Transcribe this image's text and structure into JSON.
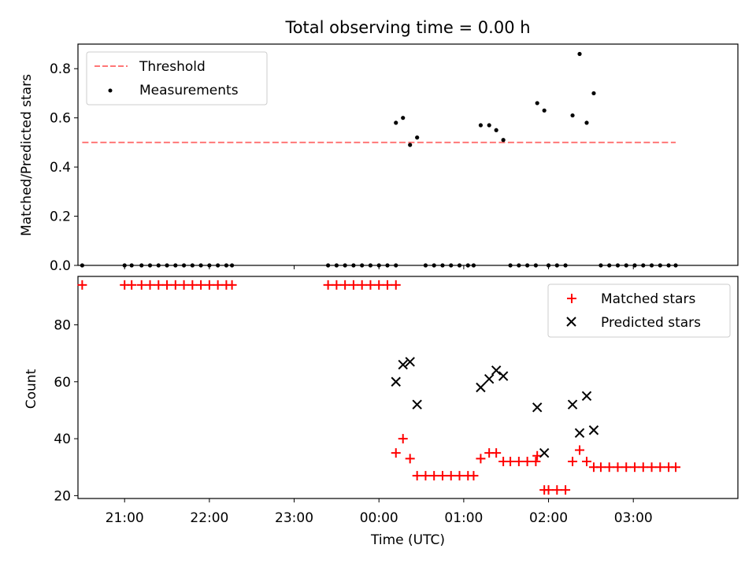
{
  "chart_data": [
    {
      "type": "scatter",
      "title": "Total observing time = 0.00 h",
      "xlabel": "",
      "ylabel": "Matched/Predicted stars",
      "xlim": [
        "20:27",
        "04:14"
      ],
      "ylim": [
        0.0,
        0.9
      ],
      "yticks": [
        "0.0",
        "0.2",
        "0.4",
        "0.6",
        "0.8"
      ],
      "legend": "upper left",
      "threshold": {
        "name": "Threshold",
        "value": 0.5,
        "x_start": "20:30",
        "x_end": "03:30",
        "color": "#ff7777",
        "style": "dashed"
      },
      "series": [
        {
          "name": "Measurements",
          "color": "#000000",
          "marker": "dot",
          "points": [
            [
              "20:30",
              0
            ],
            [
              "21:00",
              0
            ],
            [
              "21:05",
              0
            ],
            [
              "21:12",
              0
            ],
            [
              "21:18",
              0
            ],
            [
              "21:24",
              0
            ],
            [
              "21:30",
              0
            ],
            [
              "21:36",
              0
            ],
            [
              "21:42",
              0
            ],
            [
              "21:48",
              0
            ],
            [
              "21:54",
              0
            ],
            [
              "22:00",
              0
            ],
            [
              "22:06",
              0
            ],
            [
              "22:12",
              0
            ],
            [
              "22:16",
              0
            ],
            [
              "23:24",
              0
            ],
            [
              "23:30",
              0
            ],
            [
              "23:36",
              0
            ],
            [
              "23:42",
              0
            ],
            [
              "23:48",
              0
            ],
            [
              "23:54",
              0
            ],
            [
              "00:00",
              0
            ],
            [
              "00:06",
              0
            ],
            [
              "00:12",
              0
            ],
            [
              "00:12",
              0.58
            ],
            [
              "00:17",
              0.6
            ],
            [
              "00:22",
              0.49
            ],
            [
              "00:27",
              0.52
            ],
            [
              "00:33",
              0
            ],
            [
              "00:39",
              0
            ],
            [
              "00:45",
              0
            ],
            [
              "00:51",
              0
            ],
            [
              "00:57",
              0
            ],
            [
              "01:03",
              0
            ],
            [
              "01:07",
              0
            ],
            [
              "01:12",
              0.57
            ],
            [
              "01:18",
              0.57
            ],
            [
              "01:23",
              0.55
            ],
            [
              "01:28",
              0.51
            ],
            [
              "01:33",
              0
            ],
            [
              "01:39",
              0
            ],
            [
              "01:45",
              0
            ],
            [
              "01:51",
              0
            ],
            [
              "01:52",
              0.66
            ],
            [
              "01:57",
              0.63
            ],
            [
              "02:00",
              0
            ],
            [
              "02:06",
              0
            ],
            [
              "02:12",
              0
            ],
            [
              "02:17",
              0.61
            ],
            [
              "02:22",
              0.86
            ],
            [
              "02:27",
              0.58
            ],
            [
              "02:32",
              0.7
            ],
            [
              "02:37",
              0
            ],
            [
              "02:43",
              0
            ],
            [
              "02:49",
              0
            ],
            [
              "02:55",
              0
            ],
            [
              "03:01",
              0
            ],
            [
              "03:07",
              0
            ],
            [
              "03:13",
              0
            ],
            [
              "03:19",
              0
            ],
            [
              "03:25",
              0
            ],
            [
              "03:30",
              0
            ]
          ]
        }
      ]
    },
    {
      "type": "scatter",
      "title": "",
      "xlabel": "Time (UTC)",
      "ylabel": "Count",
      "xlim": [
        "20:27",
        "04:14"
      ],
      "ylim": [
        19,
        97
      ],
      "yticks": [
        "20",
        "40",
        "60",
        "80"
      ],
      "xticks": [
        "21:00",
        "22:00",
        "23:00",
        "00:00",
        "01:00",
        "02:00",
        "03:00"
      ],
      "legend": "upper right",
      "series": [
        {
          "name": "Matched stars",
          "color": "#ff0000",
          "marker": "plus",
          "points": [
            [
              "20:30",
              94
            ],
            [
              "21:00",
              94
            ],
            [
              "21:05",
              94
            ],
            [
              "21:12",
              94
            ],
            [
              "21:18",
              94
            ],
            [
              "21:24",
              94
            ],
            [
              "21:30",
              94
            ],
            [
              "21:36",
              94
            ],
            [
              "21:42",
              94
            ],
            [
              "21:48",
              94
            ],
            [
              "21:54",
              94
            ],
            [
              "22:00",
              94
            ],
            [
              "22:06",
              94
            ],
            [
              "22:12",
              94
            ],
            [
              "22:16",
              94
            ],
            [
              "23:24",
              94
            ],
            [
              "23:30",
              94
            ],
            [
              "23:36",
              94
            ],
            [
              "23:42",
              94
            ],
            [
              "23:48",
              94
            ],
            [
              "23:54",
              94
            ],
            [
              "00:00",
              94
            ],
            [
              "00:06",
              94
            ],
            [
              "00:12",
              94
            ],
            [
              "00:12",
              35
            ],
            [
              "00:17",
              40
            ],
            [
              "00:22",
              33
            ],
            [
              "00:27",
              27
            ],
            [
              "00:33",
              27
            ],
            [
              "00:39",
              27
            ],
            [
              "00:45",
              27
            ],
            [
              "00:51",
              27
            ],
            [
              "00:57",
              27
            ],
            [
              "01:03",
              27
            ],
            [
              "01:07",
              27
            ],
            [
              "01:12",
              33
            ],
            [
              "01:18",
              35
            ],
            [
              "01:23",
              35
            ],
            [
              "01:28",
              32
            ],
            [
              "01:33",
              32
            ],
            [
              "01:39",
              32
            ],
            [
              "01:45",
              32
            ],
            [
              "01:51",
              32
            ],
            [
              "01:52",
              34
            ],
            [
              "01:57",
              22
            ],
            [
              "02:00",
              22
            ],
            [
              "02:06",
              22
            ],
            [
              "02:12",
              22
            ],
            [
              "02:17",
              32
            ],
            [
              "02:22",
              36
            ],
            [
              "02:27",
              32
            ],
            [
              "02:32",
              30
            ],
            [
              "02:37",
              30
            ],
            [
              "02:43",
              30
            ],
            [
              "02:49",
              30
            ],
            [
              "02:55",
              30
            ],
            [
              "03:01",
              30
            ],
            [
              "03:07",
              30
            ],
            [
              "03:13",
              30
            ],
            [
              "03:19",
              30
            ],
            [
              "03:25",
              30
            ],
            [
              "03:30",
              30
            ]
          ]
        },
        {
          "name": "Predicted stars",
          "color": "#000000",
          "marker": "x",
          "points": [
            [
              "00:12",
              60
            ],
            [
              "00:17",
              66
            ],
            [
              "00:22",
              67
            ],
            [
              "00:27",
              52
            ],
            [
              "01:12",
              58
            ],
            [
              "01:18",
              61
            ],
            [
              "01:23",
              64
            ],
            [
              "01:28",
              62
            ],
            [
              "01:52",
              51
            ],
            [
              "01:57",
              35
            ],
            [
              "02:17",
              52
            ],
            [
              "02:22",
              42
            ],
            [
              "02:27",
              55
            ],
            [
              "02:32",
              43
            ]
          ]
        }
      ]
    }
  ]
}
